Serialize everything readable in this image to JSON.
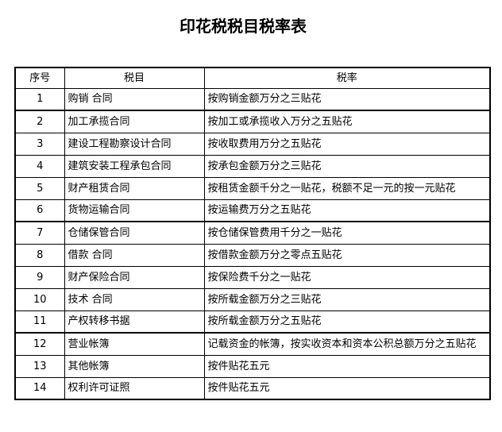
{
  "page": {
    "title": "印花税税目税率表"
  },
  "colors": {
    "background": "#ffffff",
    "text": "#000000",
    "border": "#000000"
  },
  "table": {
    "headers": [
      "序号",
      "税目",
      "税率"
    ],
    "group_separator_after_rows": [
      1,
      6,
      11
    ],
    "rows": [
      {
        "no": "1",
        "item": "购销 合同",
        "rate": "按购销金额万分之三贴花"
      },
      {
        "no": "2",
        "item": "加工承揽合同",
        "rate": "按加工或承揽收入万分之五贴花"
      },
      {
        "no": "3",
        "item": "建设工程勘察设计合同",
        "rate": "按收取费用万分之五贴花"
      },
      {
        "no": "4",
        "item": "建筑安装工程承包合同",
        "rate": "按承包金额万分之三贴花"
      },
      {
        "no": "5",
        "item": "财产租赁合同",
        "rate": "按租赁金额千分之一贴花，税额不足一元的按一元贴花"
      },
      {
        "no": "6",
        "item": "货物运输合同",
        "rate": "按运输费万分之五贴花"
      },
      {
        "no": "7",
        "item": "仓储保管合同",
        "rate": "按仓储保管费用千分之一贴花"
      },
      {
        "no": "8",
        "item": "借款 合同",
        "rate": "按借款金额万分之零点五贴花"
      },
      {
        "no": "9",
        "item": "财产保险合同",
        "rate": "按保险费千分之一贴花"
      },
      {
        "no": "10",
        "item": "技术 合同",
        "rate": "按所载金额万分之三贴花"
      },
      {
        "no": "11",
        "item": "产权转移书据",
        "rate": "按所载金额万分之五贴花"
      },
      {
        "no": "12",
        "item": "营业帐簿",
        "rate": "记载资金的帐簿，按实收资本和资本公积总额万分之五贴花"
      },
      {
        "no": "13",
        "item": "其他帐簿",
        "rate": "按件贴花五元"
      },
      {
        "no": "14",
        "item": "权利许可证照",
        "rate": "按件贴花五元"
      }
    ]
  }
}
